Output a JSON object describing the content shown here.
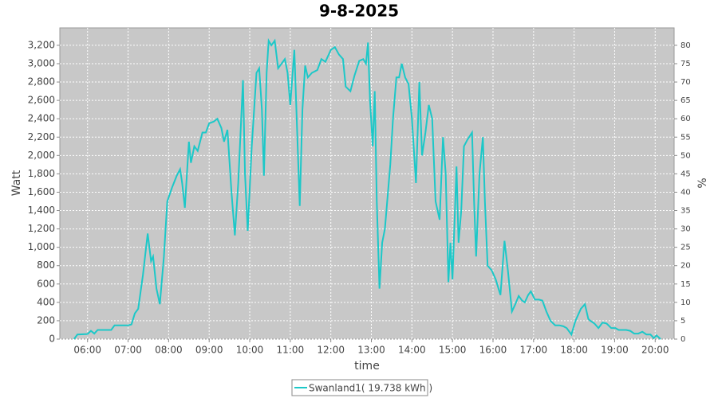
{
  "chart_data": {
    "type": "line",
    "title": "9-8-2025",
    "xlabel": "time",
    "ylabel": "Watt",
    "y2label": "%",
    "xlim": [
      "05:19",
      "20:28"
    ],
    "xticks": [
      "06:00",
      "07:00",
      "08:00",
      "09:00",
      "10:00",
      "11:00",
      "12:00",
      "13:00",
      "14:00",
      "15:00",
      "16:00",
      "17:00",
      "18:00",
      "19:00",
      "20:00"
    ],
    "ylim": [
      0,
      3390
    ],
    "yticks": [
      0,
      200,
      400,
      600,
      800,
      {
        "value": 1000,
        "label": "1,000"
      },
      {
        "value": 1200,
        "label": "1,200"
      },
      {
        "value": 1400,
        "label": "1,400"
      },
      {
        "value": 1600,
        "label": "1,600"
      },
      {
        "value": 1800,
        "label": "1,800"
      },
      {
        "value": 2000,
        "label": "2,000"
      },
      {
        "value": 2200,
        "label": "2,200"
      },
      {
        "value": 2400,
        "label": "2,400"
      },
      {
        "value": 2600,
        "label": "2,600"
      },
      {
        "value": 2800,
        "label": "2,800"
      },
      {
        "value": 3000,
        "label": "3,000"
      },
      {
        "value": 3200,
        "label": "3,200"
      }
    ],
    "y2lim": [
      0,
      84.75
    ],
    "y2ticks": [
      0,
      5,
      10,
      15,
      20,
      25,
      30,
      35,
      40,
      45,
      50,
      55,
      60,
      65,
      70,
      75,
      80
    ],
    "grid": true,
    "background": "#c8c8c8",
    "legend": "bottom",
    "x": [
      "05:40",
      "05:45",
      "06:00",
      "06:05",
      "06:10",
      "06:15",
      "06:35",
      "06:40",
      "07:00",
      "07:05",
      "07:10",
      "07:15",
      "07:22",
      "07:29",
      "07:34",
      "07:37",
      "07:42",
      "07:47",
      "07:53",
      "07:58",
      "08:05",
      "08:12",
      "08:17",
      "08:20",
      "08:24",
      "08:30",
      "08:33",
      "08:38",
      "08:43",
      "08:50",
      "08:55",
      "09:00",
      "09:07",
      "09:12",
      "09:18",
      "09:22",
      "09:27",
      "09:33",
      "09:38",
      "09:43",
      "09:50",
      "09:53",
      "09:57",
      "10:03",
      "10:10",
      "10:14",
      "10:18",
      "10:21",
      "10:25",
      "10:28",
      "10:32",
      "10:37",
      "10:42",
      "10:47",
      "10:52",
      "10:56",
      "11:00",
      "11:06",
      "11:10",
      "11:14",
      "11:18",
      "11:22",
      "11:26",
      "11:32",
      "11:40",
      "11:46",
      "11:52",
      "12:00",
      "12:06",
      "12:12",
      "12:18",
      "12:22",
      "12:29",
      "12:35",
      "12:42",
      "12:48",
      "12:52",
      "12:55",
      "12:58",
      "13:02",
      "13:05",
      "13:08",
      "13:12",
      "13:16",
      "13:20",
      "13:24",
      "13:28",
      "13:32",
      "13:37",
      "13:41",
      "13:45",
      "13:50",
      "13:55",
      "14:00",
      "14:06",
      "14:11",
      "14:15",
      "14:20",
      "14:25",
      "14:30",
      "14:35",
      "14:41",
      "14:46",
      "14:50",
      "14:54",
      "14:57",
      "15:00",
      "15:06",
      "15:09",
      "15:13",
      "15:17",
      "15:22",
      "15:29",
      "15:32",
      "15:35",
      "15:40",
      "15:45",
      "15:48",
      "15:52",
      "15:58",
      "16:04",
      "16:11",
      "16:17",
      "16:22",
      "16:28",
      "16:33",
      "16:38",
      "16:43",
      "16:47",
      "16:52",
      "16:56",
      "17:02",
      "17:08",
      "17:13",
      "17:19",
      "17:25",
      "17:32",
      "17:38",
      "17:44",
      "17:49",
      "17:56",
      "18:02",
      "18:10",
      "18:16",
      "18:21",
      "18:24",
      "18:30",
      "18:36",
      "18:42",
      "18:48",
      "18:55",
      "19:01",
      "19:06",
      "19:11",
      "19:17",
      "19:23",
      "19:29",
      "19:35",
      "19:41",
      "19:47",
      "19:53",
      "19:58",
      "20:02",
      "20:08"
    ],
    "series": [
      {
        "name": "Swanland1( 19.738 kWh )",
        "color": "#1cc8c8",
        "values": [
          0,
          50,
          55,
          90,
          60,
          100,
          100,
          150,
          150,
          160,
          280,
          330,
          700,
          1150,
          850,
          900,
          550,
          380,
          900,
          1500,
          1650,
          1780,
          1850,
          1700,
          1430,
          2150,
          1920,
          2100,
          2050,
          2250,
          2250,
          2350,
          2370,
          2400,
          2300,
          2150,
          2280,
          1600,
          1130,
          1700,
          2820,
          1800,
          1180,
          2100,
          2900,
          2950,
          2500,
          1780,
          2900,
          3250,
          3200,
          3250,
          2950,
          3000,
          3050,
          2900,
          2550,
          3150,
          2300,
          1450,
          2500,
          2980,
          2850,
          2900,
          2930,
          3050,
          3020,
          3150,
          3180,
          3100,
          3050,
          2750,
          2700,
          2870,
          3030,
          3050,
          3000,
          3230,
          2600,
          2100,
          2700,
          1500,
          550,
          1050,
          1200,
          1550,
          1900,
          2400,
          2850,
          2850,
          3000,
          2850,
          2780,
          2400,
          1700,
          2800,
          2000,
          2250,
          2550,
          2400,
          1500,
          1300,
          2200,
          1800,
          620,
          1050,
          650,
          1880,
          1050,
          1400,
          2100,
          2170,
          2250,
          1500,
          900,
          1800,
          2200,
          1500,
          800,
          750,
          650,
          480,
          1070,
          750,
          300,
          380,
          470,
          420,
          400,
          480,
          520,
          430,
          430,
          420,
          300,
          200,
          150,
          150,
          140,
          120,
          50,
          200,
          330,
          380,
          220,
          200,
          170,
          120,
          180,
          170,
          120,
          120,
          100,
          100,
          100,
          90,
          60,
          60,
          80,
          50,
          50,
          10,
          40,
          0
        ]
      }
    ]
  }
}
